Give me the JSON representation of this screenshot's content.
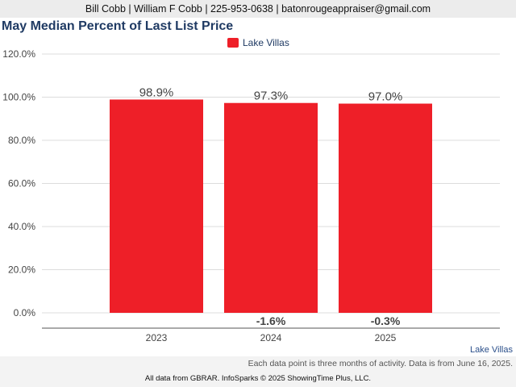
{
  "header": {
    "contact_line": "Bill Cobb | William F Cobb | 225-953-0638 | batonrougeappraiser@gmail.com"
  },
  "chart_data": {
    "type": "bar",
    "title": "May Median Percent of Last List Price",
    "categories": [
      "2023",
      "2024",
      "2025"
    ],
    "series": [
      {
        "name": "Lake Villas",
        "values": [
          98.9,
          97.3,
          97.0
        ],
        "color": "#ee1f28"
      }
    ],
    "value_labels": [
      "98.9%",
      "97.3%",
      "97.0%"
    ],
    "change_labels": [
      "",
      "-1.6%",
      "-0.3%"
    ],
    "y_ticks": [
      "0.0%",
      "20.0%",
      "40.0%",
      "60.0%",
      "80.0%",
      "100.0%",
      "120.0%"
    ],
    "ylim": [
      0,
      120
    ],
    "grid": true,
    "legend": "top-center"
  },
  "footer": {
    "series_name": "Lake Villas",
    "note": "Each data point is three months of activity. Data is from June 16, 2025.",
    "source": "All data from GBRAR. InfoSparks © 2025 ShowingTime Plus, LLC."
  }
}
